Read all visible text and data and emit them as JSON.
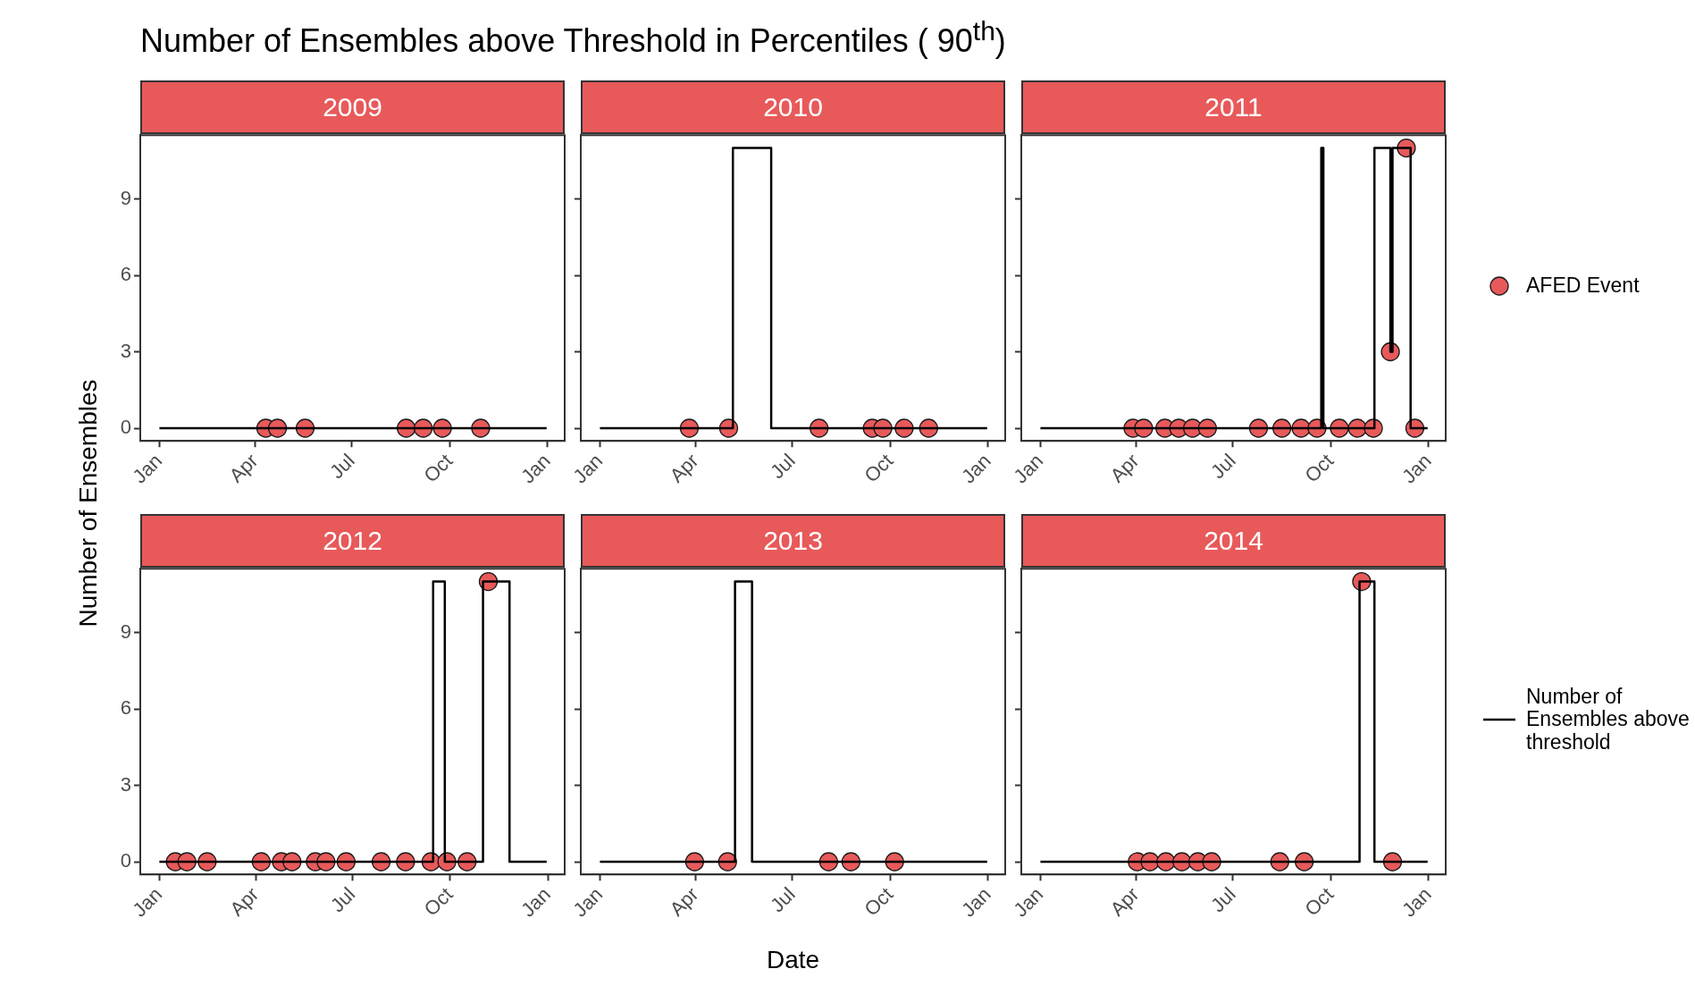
{
  "chart_data": [
    {
      "type": "step",
      "title": "Number of Ensembles above Threshold in Percentiles ( 90$^{th}$)",
      "subtitle": "2009",
      "ylabel": "Number of Ensembles",
      "grid": false,
      "xlim": [
        "2008-12-14",
        "2010-01-17"
      ],
      "xticks": [
        {
          "value": "2009-01-01",
          "label": "Jan"
        },
        {
          "value": "2009-04-01",
          "label": "Apr"
        },
        {
          "value": "2009-07-01",
          "label": "Jul"
        },
        {
          "value": "2009-10-01",
          "label": "Oct"
        },
        {
          "value": "2010-01-01",
          "label": "Jan"
        }
      ],
      "ylim": [
        -0.5,
        11.5
      ],
      "yticks": [
        0,
        3,
        6,
        9
      ],
      "series": [
        {
          "type": "step",
          "color": "#000000",
          "x": [
            "2009-01-01",
            "2009-12-31"
          ],
          "values": [
            0,
            0
          ]
        },
        {
          "type": "scatter",
          "marker": "circle",
          "color": "#e8595a",
          "x": [
            "2009-04-11",
            "2009-04-22",
            "2009-05-18",
            "2009-08-21",
            "2009-09-06",
            "2009-09-24",
            "2009-10-30"
          ],
          "values": [
            0,
            0,
            0,
            0,
            0,
            0,
            0
          ]
        }
      ]
    },
    {
      "type": "step",
      "subtitle": "2010",
      "grid": false,
      "tick_labels": "x",
      "xlim": [
        "2009-12-14",
        "2011-01-17"
      ],
      "xticks": [
        {
          "value": "2010-01-01",
          "label": "Jan"
        },
        {
          "value": "2010-04-01",
          "label": "Apr"
        },
        {
          "value": "2010-07-01",
          "label": "Jul"
        },
        {
          "value": "2010-10-01",
          "label": "Oct"
        },
        {
          "value": "2011-01-01",
          "label": "Jan"
        }
      ],
      "ylim": [
        -0.5,
        11.5
      ],
      "yticks": [
        0,
        3,
        6,
        9
      ],
      "series": [
        {
          "type": "step",
          "color": "#000000",
          "x": [
            "2010-01-01",
            "2010-05-06",
            "2010-06-11",
            "2010-12-31"
          ],
          "values": [
            0,
            11,
            0,
            0
          ]
        },
        {
          "type": "scatter",
          "marker": "circle",
          "color": "#e8595a",
          "x": [
            "2010-03-26",
            "2010-05-02",
            "2010-07-26",
            "2010-09-14",
            "2010-09-24",
            "2010-10-14",
            "2010-11-06"
          ],
          "values": [
            0,
            0,
            0,
            0,
            0,
            0,
            0
          ]
        }
      ]
    },
    {
      "type": "step",
      "subtitle": "2011",
      "grid": false,
      "tick_labels": "x",
      "legend": "right",
      "xlim": [
        "2010-12-14",
        "2012-01-17"
      ],
      "xticks": [
        {
          "value": "2011-01-01",
          "label": "Jan"
        },
        {
          "value": "2011-04-01",
          "label": "Apr"
        },
        {
          "value": "2011-07-01",
          "label": "Jul"
        },
        {
          "value": "2011-10-01",
          "label": "Oct"
        },
        {
          "value": "2012-01-01",
          "label": "Jan"
        }
      ],
      "ylim": [
        -0.5,
        11.5
      ],
      "yticks": [
        0,
        3,
        6,
        9
      ],
      "series": [
        {
          "type": "step",
          "color": "#000000",
          "x": [
            "2011-01-01",
            "2011-09-22",
            "2011-09-24",
            "2011-11-11",
            "2011-11-26",
            "2011-11-28",
            "2011-12-15",
            "2011-12-31"
          ],
          "values": [
            0,
            11,
            0,
            11,
            3,
            11,
            0,
            0
          ]
        },
        {
          "type": "scatter",
          "marker": "circle",
          "name": "AFED Event",
          "color": "#e8595a",
          "x": [
            "2011-03-29",
            "2011-04-08",
            "2011-04-28",
            "2011-05-11",
            "2011-05-24",
            "2011-06-07",
            "2011-07-25",
            "2011-08-16",
            "2011-09-03",
            "2011-09-18",
            "2011-10-09",
            "2011-10-26",
            "2011-11-10",
            "2011-11-26",
            "2011-12-11",
            "2011-12-19"
          ],
          "values": [
            0,
            0,
            0,
            0,
            0,
            0,
            0,
            0,
            0,
            0,
            0,
            0,
            0,
            3,
            11,
            0
          ]
        }
      ]
    },
    {
      "type": "step",
      "subtitle": "2012",
      "grid": false,
      "xlim": [
        "2011-12-14",
        "2013-01-17"
      ],
      "xticks": [
        {
          "value": "2012-01-01",
          "label": "Jan"
        },
        {
          "value": "2012-04-01",
          "label": "Apr"
        },
        {
          "value": "2012-07-01",
          "label": "Jul"
        },
        {
          "value": "2012-10-01",
          "label": "Oct"
        },
        {
          "value": "2013-01-01",
          "label": "Jan"
        }
      ],
      "ylim": [
        -0.5,
        11.5
      ],
      "yticks": [
        0,
        3,
        6,
        9
      ],
      "series": [
        {
          "type": "step",
          "color": "#000000",
          "x": [
            "2012-01-01",
            "2012-09-15",
            "2012-09-26",
            "2012-11-01",
            "2012-11-26",
            "2012-12-31"
          ],
          "values": [
            0,
            11,
            0,
            11,
            0,
            0
          ]
        },
        {
          "type": "scatter",
          "marker": "circle",
          "color": "#e8595a",
          "x": [
            "2012-01-16",
            "2012-01-27",
            "2012-02-15",
            "2012-04-06",
            "2012-04-25",
            "2012-05-05",
            "2012-05-27",
            "2012-06-06",
            "2012-06-25",
            "2012-07-28",
            "2012-08-20",
            "2012-09-13",
            "2012-09-28",
            "2012-10-17",
            "2012-11-06"
          ],
          "values": [
            0,
            0,
            0,
            0,
            0,
            0,
            0,
            0,
            0,
            0,
            0,
            0,
            0,
            0,
            11
          ]
        }
      ]
    },
    {
      "type": "step",
      "subtitle": "2013",
      "xlabel": "Date",
      "grid": false,
      "tick_labels": "x",
      "xlim": [
        "2012-12-14",
        "2014-01-17"
      ],
      "xticks": [
        {
          "value": "2013-01-01",
          "label": "Jan"
        },
        {
          "value": "2013-04-01",
          "label": "Apr"
        },
        {
          "value": "2013-07-01",
          "label": "Jul"
        },
        {
          "value": "2013-10-01",
          "label": "Oct"
        },
        {
          "value": "2014-01-01",
          "label": "Jan"
        }
      ],
      "ylim": [
        -0.5,
        11.5
      ],
      "yticks": [
        0,
        3,
        6,
        9
      ],
      "series": [
        {
          "type": "step",
          "color": "#000000",
          "x": [
            "2013-01-01",
            "2013-05-08",
            "2013-05-24",
            "2013-12-31"
          ],
          "values": [
            0,
            11,
            0,
            0
          ]
        },
        {
          "type": "scatter",
          "marker": "circle",
          "color": "#e8595a",
          "x": [
            "2013-03-31",
            "2013-05-01",
            "2013-08-04",
            "2013-08-25",
            "2013-10-05"
          ],
          "values": [
            0,
            0,
            0,
            0,
            0
          ]
        }
      ]
    },
    {
      "type": "step",
      "subtitle": "2014",
      "grid": false,
      "tick_labels": "x",
      "legend": "right",
      "xlim": [
        "2013-12-14",
        "2015-01-17"
      ],
      "xticks": [
        {
          "value": "2014-01-01",
          "label": "Jan"
        },
        {
          "value": "2014-04-01",
          "label": "Apr"
        },
        {
          "value": "2014-07-01",
          "label": "Jul"
        },
        {
          "value": "2014-10-01",
          "label": "Oct"
        },
        {
          "value": "2015-01-01",
          "label": "Jan"
        }
      ],
      "ylim": [
        -0.5,
        11.5
      ],
      "yticks": [
        0,
        3,
        6,
        9
      ],
      "series": [
        {
          "type": "step",
          "name": "Number of Ensembles above threshold",
          "color": "#000000",
          "x": [
            "2014-01-01",
            "2014-10-28",
            "2014-11-11",
            "2014-12-31"
          ],
          "values": [
            0,
            11,
            0,
            0
          ]
        },
        {
          "type": "scatter",
          "marker": "circle",
          "color": "#e8595a",
          "x": [
            "2014-04-02",
            "2014-04-14",
            "2014-04-29",
            "2014-05-14",
            "2014-05-29",
            "2014-06-11",
            "2014-08-14",
            "2014-09-06",
            "2014-10-30",
            "2014-11-28"
          ],
          "values": [
            0,
            0,
            0,
            0,
            0,
            0,
            0,
            0,
            11,
            0
          ]
        }
      ]
    }
  ]
}
